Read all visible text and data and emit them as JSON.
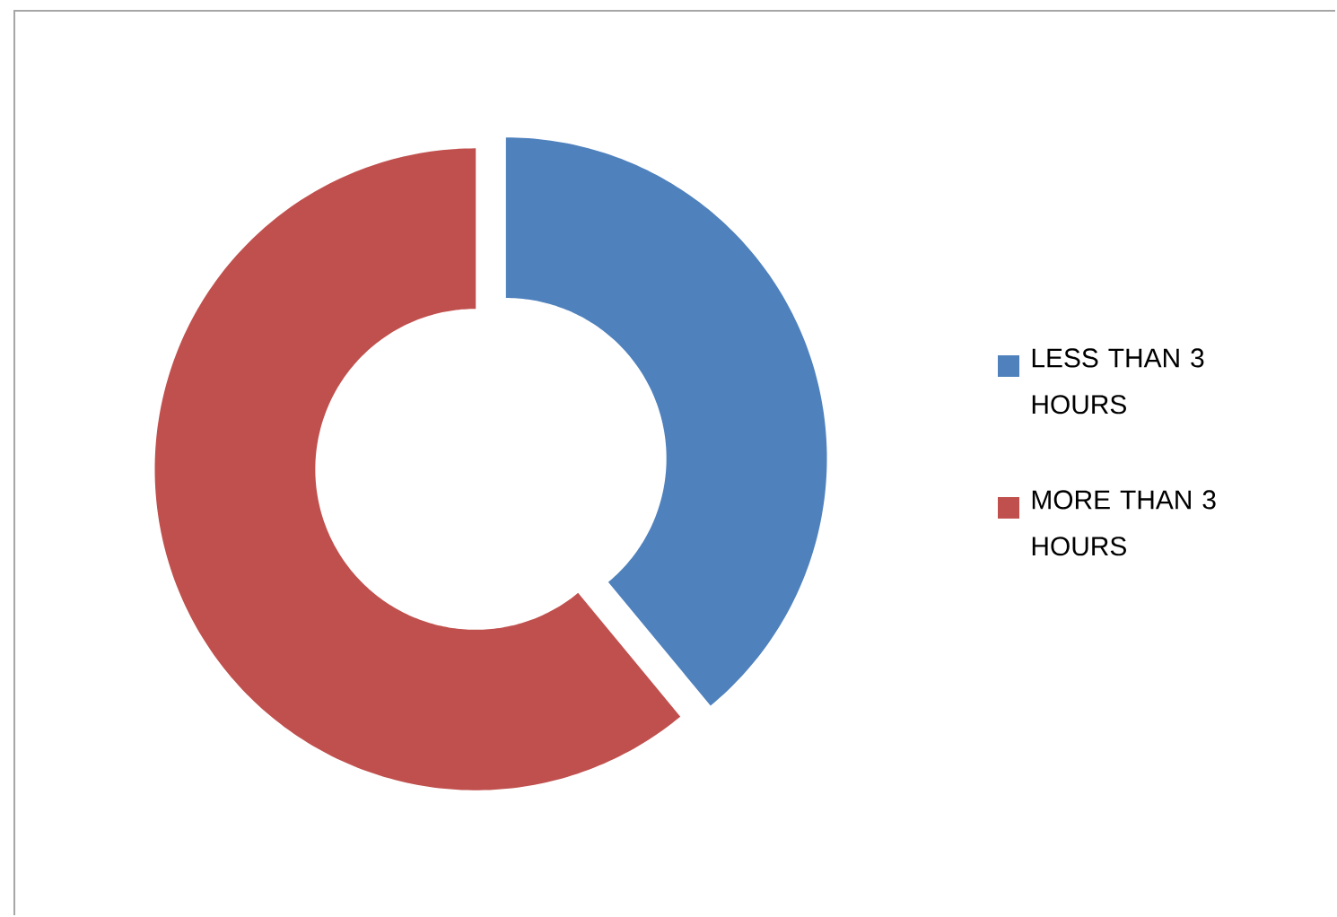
{
  "chart_data": {
    "type": "donut",
    "categories": [
      "LESS THAN 3 HOURS",
      "MORE THAN 3 HOURS"
    ],
    "values": [
      39,
      61
    ],
    "colors": [
      "#4f81bd",
      "#c0504d"
    ],
    "legend": "right"
  }
}
